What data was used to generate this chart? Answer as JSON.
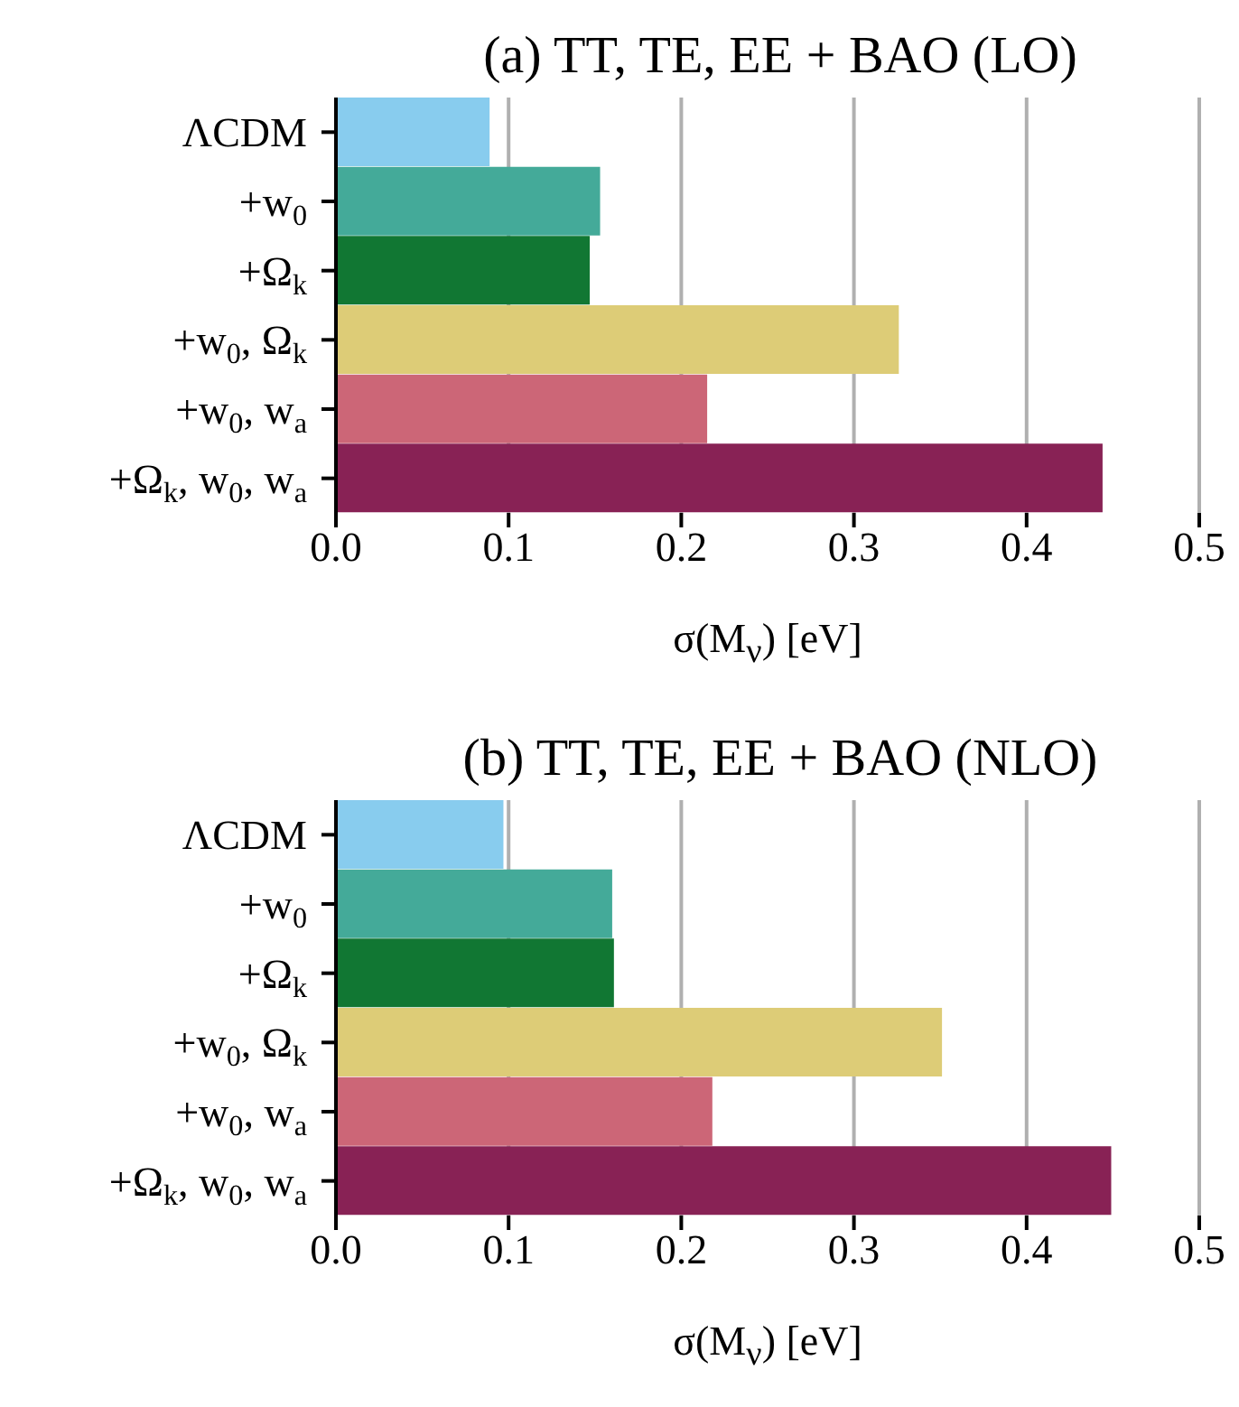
{
  "chart_data": [
    {
      "type": "bar",
      "orientation": "horizontal",
      "title": "(a) TT, TE, EE + BAO (LO)",
      "xlabel": "σ(M$_{ν}$) [eV]",
      "categories": [
        "ΛCDM",
        "+w$_{0}$",
        "+Ω$_{k}$",
        "+w$_{0}$, Ω$_{k}$",
        "+w$_{0}$, w$_{a}$",
        "+Ω$_{k}$, w$_{0}$, w$_{a}$"
      ],
      "values": [
        0.089,
        0.153,
        0.147,
        0.326,
        0.215,
        0.444
      ],
      "colors": [
        "#88ccee",
        "#44aa99",
        "#117733",
        "#ddcc77",
        "#cc6677",
        "#882255"
      ],
      "xlim": [
        0,
        0.5
      ],
      "xticks": [
        {
          "value": 0,
          "label": "0.0"
        },
        0.1,
        0.2,
        0.3,
        0.4,
        0.5
      ],
      "grid": "x"
    },
    {
      "type": "bar",
      "orientation": "horizontal",
      "title": "(b) TT, TE, EE + BAO (NLO)",
      "xlabel": "σ(M$_{ν}$) [eV]",
      "categories": [
        "ΛCDM",
        "+w$_{0}$",
        "+Ω$_{k}$",
        "+w$_{0}$, Ω$_{k}$",
        "+w$_{0}$, w$_{a}$",
        "+Ω$_{k}$, w$_{0}$, w$_{a}$"
      ],
      "values": [
        0.097,
        0.16,
        0.161,
        0.351,
        0.218,
        0.449
      ],
      "colors": [
        "#88ccee",
        "#44aa99",
        "#117733",
        "#ddcc77",
        "#cc6677",
        "#882255"
      ],
      "xlim": [
        0,
        0.5
      ],
      "xticks": [
        {
          "value": 0,
          "label": "0.0"
        },
        0.1,
        0.2,
        0.3,
        0.4,
        0.5
      ],
      "grid": "x"
    }
  ]
}
